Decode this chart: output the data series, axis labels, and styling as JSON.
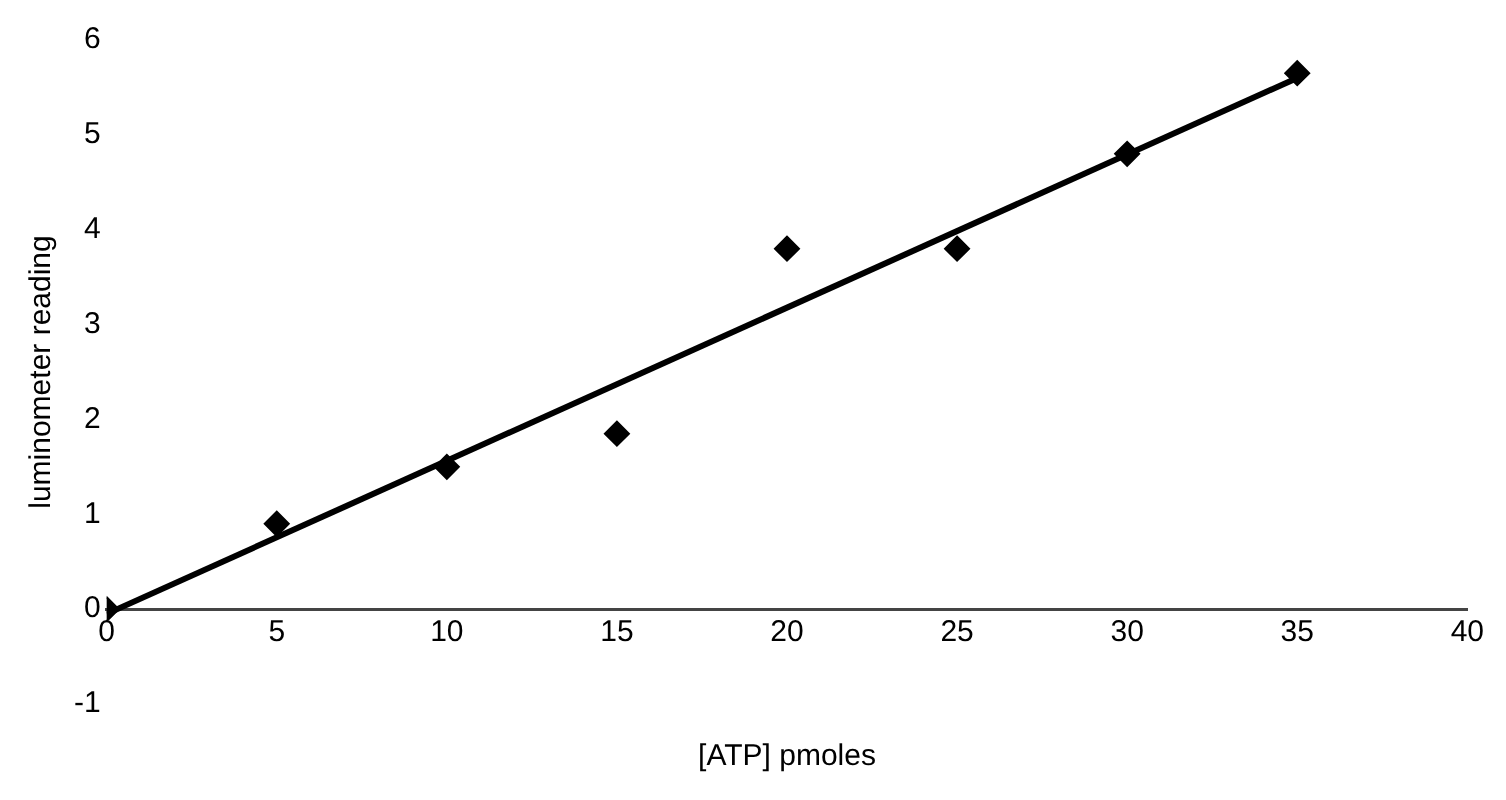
{
  "chart_data": {
    "type": "scatter",
    "xlabel": "[ATP] pmoles",
    "ylabel": "luminometer reading",
    "xlim": [
      0,
      40
    ],
    "xticks": [
      0,
      5,
      10,
      15,
      20,
      25,
      30,
      35,
      40
    ],
    "ylim": [
      -1,
      6
    ],
    "yticks": [
      -1,
      0,
      1,
      2,
      3,
      4,
      5,
      6
    ],
    "grid": false,
    "legend": false,
    "marker": "diamond",
    "series": [
      {
        "type": "scatter",
        "color": "#000000",
        "x": [
          0,
          5,
          10,
          15,
          20,
          25,
          30,
          35
        ],
        "values": [
          0,
          0.9,
          1.5,
          1.85,
          3.8,
          3.8,
          4.8,
          5.65
        ]
      },
      {
        "type": "line",
        "color": "#000000",
        "x": [
          0,
          35
        ],
        "values": [
          -0.05,
          5.6
        ],
        "marker": "none",
        "line_style": "solid"
      }
    ]
  }
}
